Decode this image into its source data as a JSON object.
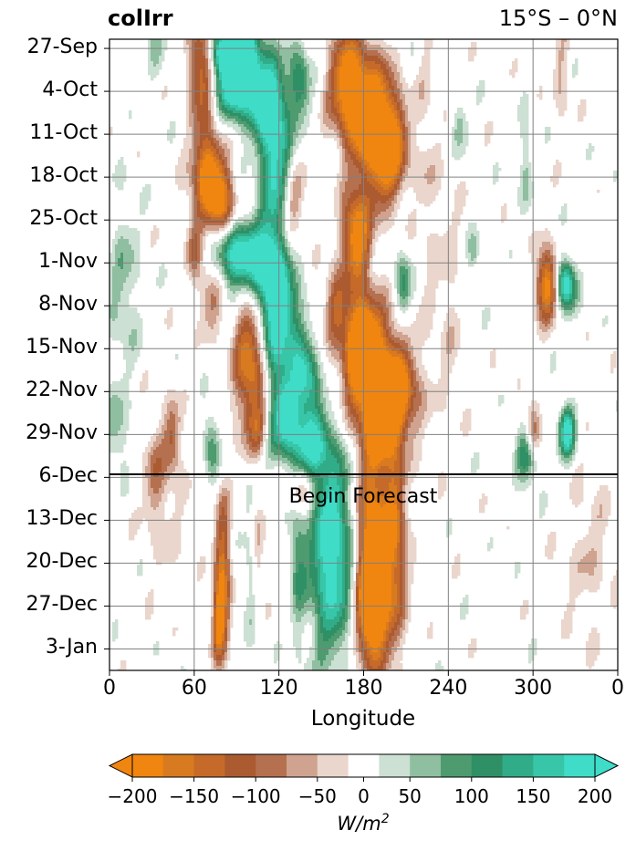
{
  "chart_data": {
    "type": "heatmap",
    "title_left": "colIrr",
    "title_right": "15°S – 0°N",
    "xlabel": "Longitude",
    "x_ticks": [
      "0",
      "60",
      "120",
      "180",
      "240",
      "300",
      "0"
    ],
    "xlim": [
      0,
      360
    ],
    "y_ticks": [
      "27-Sep",
      "4-Oct",
      "11-Oct",
      "18-Oct",
      "25-Oct",
      "1-Nov",
      "8-Nov",
      "15-Nov",
      "22-Nov",
      "29-Nov",
      "6-Dec",
      "13-Dec",
      "20-Dec",
      "27-Dec",
      "3-Jan"
    ],
    "grid": true,
    "annotation": "Begin Forecast",
    "forecast_start_day": 71,
    "colorbar": {
      "label_base": "W/m",
      "label_exp": "2",
      "ticks": [
        "−200",
        "−150",
        "−100",
        "−50",
        "0",
        "50",
        "100",
        "150",
        "200"
      ],
      "levels": [
        -200,
        -175,
        -150,
        -125,
        -100,
        -75,
        -50,
        -25,
        25,
        50,
        75,
        100,
        125,
        150,
        175,
        200
      ],
      "colors": [
        "#f0850f",
        "#d87a1f",
        "#c56a28",
        "#ac5a30",
        "#b5704f",
        "#cfa38f",
        "#ead6cc",
        "#ffffff",
        "#cce0d3",
        "#8fbfa0",
        "#4e9b70",
        "#2f9066",
        "#31ac88",
        "#38c6a8",
        "#3fdcc8"
      ],
      "extend": "both"
    },
    "features": [
      {
        "lon": 80,
        "day": 2,
        "lonw": 6,
        "dayw": 2.5,
        "val": 220
      },
      {
        "lon": 95,
        "day": 2,
        "lonw": 7,
        "dayw": 3,
        "val": 220
      },
      {
        "lon": 90,
        "day": 8,
        "lonw": 10,
        "dayw": 4,
        "val": 220
      },
      {
        "lon": 110,
        "day": 9,
        "lonw": 8,
        "dayw": 5,
        "val": 180
      },
      {
        "lon": 118,
        "day": 20,
        "lonw": 8,
        "dayw": 9,
        "val": 200
      },
      {
        "lon": 135,
        "day": 7,
        "lonw": 5,
        "dayw": 4,
        "val": 130
      },
      {
        "lon": 90,
        "day": 35,
        "lonw": 11,
        "dayw": 4,
        "val": 220
      },
      {
        "lon": 112,
        "day": 38,
        "lonw": 9,
        "dayw": 5,
        "val": 200
      },
      {
        "lon": 122,
        "day": 49,
        "lonw": 10,
        "dayw": 7,
        "val": 220
      },
      {
        "lon": 140,
        "day": 56,
        "lonw": 6,
        "dayw": 4,
        "val": 150
      },
      {
        "lon": 125,
        "day": 61,
        "lonw": 6,
        "dayw": 5,
        "val": 180
      },
      {
        "lon": 142,
        "day": 66,
        "lonw": 9,
        "dayw": 4,
        "val": 160
      },
      {
        "lon": 157,
        "day": 83,
        "lonw": 11,
        "dayw": 12,
        "val": 220
      },
      {
        "lon": 133,
        "day": 82,
        "lonw": 4,
        "dayw": 10,
        "val": 90
      },
      {
        "lon": 248,
        "day": 14,
        "lonw": 4,
        "dayw": 3,
        "val": 70
      },
      {
        "lon": 258,
        "day": 35,
        "lonw": 3,
        "dayw": 2.5,
        "val": 60
      },
      {
        "lon": 323,
        "day": 40,
        "lonw": 5,
        "dayw": 3,
        "val": 220
      },
      {
        "lon": 324,
        "day": 64,
        "lonw": 4,
        "dayw": 3,
        "val": 210
      },
      {
        "lon": 296,
        "day": 68,
        "lonw": 6,
        "dayw": 3,
        "val": 140
      },
      {
        "lon": 295,
        "day": 20,
        "lonw": 3,
        "dayw": 6,
        "val": 60
      },
      {
        "lon": 10,
        "day": 40,
        "lonw": 8,
        "dayw": 10,
        "val": 60
      },
      {
        "lon": 5,
        "day": 64,
        "lonw": 6,
        "dayw": 4,
        "val": 70
      },
      {
        "lon": 72,
        "day": 66,
        "lonw": 4,
        "dayw": 4,
        "val": 100
      },
      {
        "lon": 115,
        "day": 66,
        "lonw": 5,
        "dayw": 3,
        "val": 70
      },
      {
        "lon": 32,
        "day": 0,
        "lonw": 6,
        "dayw": 5,
        "val": 40
      },
      {
        "lon": 208,
        "day": 40,
        "lonw": 4,
        "dayw": 4,
        "val": 110
      },
      {
        "lon": 100,
        "day": 85,
        "lonw": 4,
        "dayw": 10,
        "val": 50
      },
      {
        "lon": 65,
        "day": 5,
        "lonw": 6,
        "dayw": 6,
        "val": -160
      },
      {
        "lon": 80,
        "day": 28,
        "lonw": 7,
        "dayw": 4,
        "val": -160
      },
      {
        "lon": 70,
        "day": 22,
        "lonw": 8,
        "dayw": 5,
        "val": -220
      },
      {
        "lon": 60,
        "day": 34,
        "lonw": 4,
        "dayw": 4,
        "val": -90
      },
      {
        "lon": 128,
        "day": 26,
        "lonw": 6,
        "dayw": 5,
        "val": -110
      },
      {
        "lon": 168,
        "day": 7,
        "lonw": 9,
        "dayw": 6,
        "val": -190
      },
      {
        "lon": 185,
        "day": 13,
        "lonw": 11,
        "dayw": 7,
        "val": -220
      },
      {
        "lon": 198,
        "day": 18,
        "lonw": 9,
        "dayw": 6,
        "val": -200
      },
      {
        "lon": 175,
        "day": 32,
        "lonw": 7,
        "dayw": 5,
        "val": -220
      },
      {
        "lon": 160,
        "day": 43,
        "lonw": 6,
        "dayw": 4,
        "val": -110
      },
      {
        "lon": 185,
        "day": 54,
        "lonw": 14,
        "dayw": 7,
        "val": -220
      },
      {
        "lon": 205,
        "day": 58,
        "lonw": 10,
        "dayw": 5,
        "val": -170
      },
      {
        "lon": 193,
        "day": 62,
        "lonw": 7,
        "dayw": 4,
        "val": -180
      },
      {
        "lon": 178,
        "day": 49,
        "lonw": 7,
        "dayw": 5,
        "val": -200
      },
      {
        "lon": 100,
        "day": 53,
        "lonw": 8,
        "dayw": 8,
        "val": -190
      },
      {
        "lon": 125,
        "day": 54,
        "lonw": 5,
        "dayw": 4,
        "val": -80
      },
      {
        "lon": 72,
        "day": 42,
        "lonw": 6,
        "dayw": 4,
        "val": -90
      },
      {
        "lon": 106,
        "day": 64,
        "lonw": 5,
        "dayw": 3,
        "val": -80
      },
      {
        "lon": 135,
        "day": 74,
        "lonw": 6,
        "dayw": 3,
        "val": -140
      },
      {
        "lon": 186,
        "day": 82,
        "lonw": 8,
        "dayw": 12,
        "val": -220
      },
      {
        "lon": 202,
        "day": 82,
        "lonw": 6,
        "dayw": 12,
        "val": -160
      },
      {
        "lon": 186,
        "day": 93,
        "lonw": 7,
        "dayw": 6,
        "val": -200
      },
      {
        "lon": 80,
        "day": 88,
        "lonw": 4,
        "dayw": 9,
        "val": -170
      },
      {
        "lon": 77,
        "day": 95,
        "lonw": 3,
        "dayw": 4,
        "val": -130
      },
      {
        "lon": 105,
        "day": 84,
        "lonw": 3,
        "dayw": 6,
        "val": -70
      },
      {
        "lon": 45,
        "day": 65,
        "lonw": 4,
        "dayw": 4,
        "val": -90
      },
      {
        "lon": 32,
        "day": 71,
        "lonw": 6,
        "dayw": 6,
        "val": -60
      },
      {
        "lon": 240,
        "day": 42,
        "lonw": 7,
        "dayw": 15,
        "val": -35
      },
      {
        "lon": 310,
        "day": 40,
        "lonw": 6,
        "dayw": 4,
        "val": -200
      },
      {
        "lon": 300,
        "day": 64,
        "lonw": 4,
        "dayw": 3,
        "val": -130
      },
      {
        "lon": 320,
        "day": 6,
        "lonw": 4,
        "dayw": 6,
        "val": -50
      },
      {
        "lon": 340,
        "day": 84,
        "lonw": 12,
        "dayw": 10,
        "val": -40
      },
      {
        "lon": 225,
        "day": 20,
        "lonw": 5,
        "dayw": 20,
        "val": -35
      },
      {
        "lon": 40,
        "day": 75,
        "lonw": 10,
        "dayw": 10,
        "val": -30
      }
    ]
  }
}
